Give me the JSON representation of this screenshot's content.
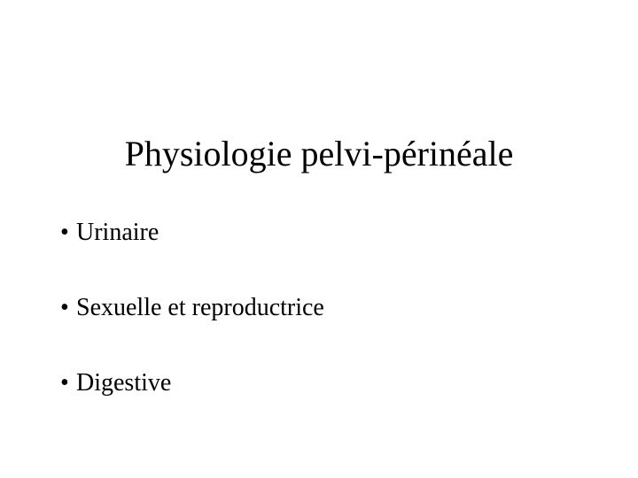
{
  "slide": {
    "title": "Physiologie pelvi-périnéale",
    "bullets": [
      {
        "label": "Urinaire"
      },
      {
        "label": "Sexuelle et reproductrice"
      },
      {
        "label": "Digestive"
      }
    ],
    "style": {
      "background_color": "#ffffff",
      "text_color": "#000000",
      "title_fontsize_pt": 30,
      "bullet_fontsize_pt": 21,
      "font_family": "Times New Roman",
      "bullet_glyph": "•"
    }
  }
}
